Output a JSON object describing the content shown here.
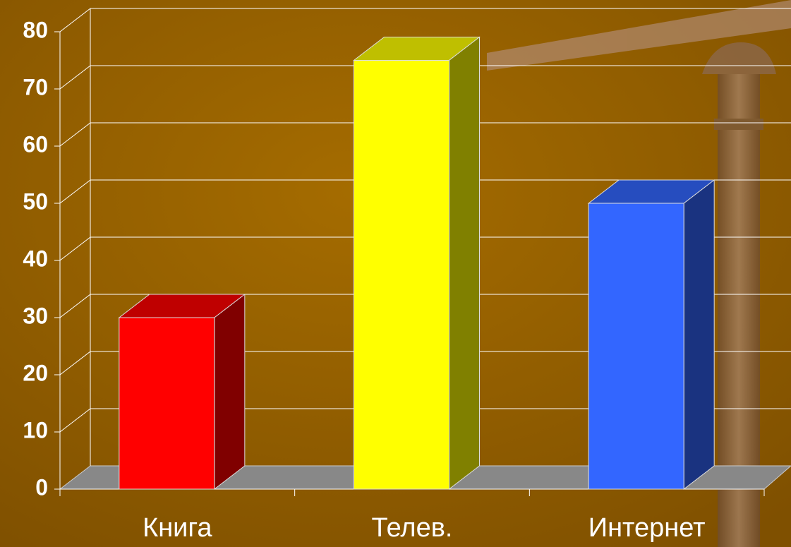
{
  "chart_data": {
    "type": "bar3d",
    "categories": [
      "Книга",
      "Телев.",
      "Интернет"
    ],
    "values": [
      30,
      75,
      50
    ],
    "colors": [
      "#ff0000",
      "#ffff00",
      "#3366ff"
    ],
    "ylim": [
      0,
      80
    ],
    "yticks": [
      0,
      10,
      20,
      30,
      40,
      50,
      60,
      70,
      80
    ],
    "grid": true
  }
}
